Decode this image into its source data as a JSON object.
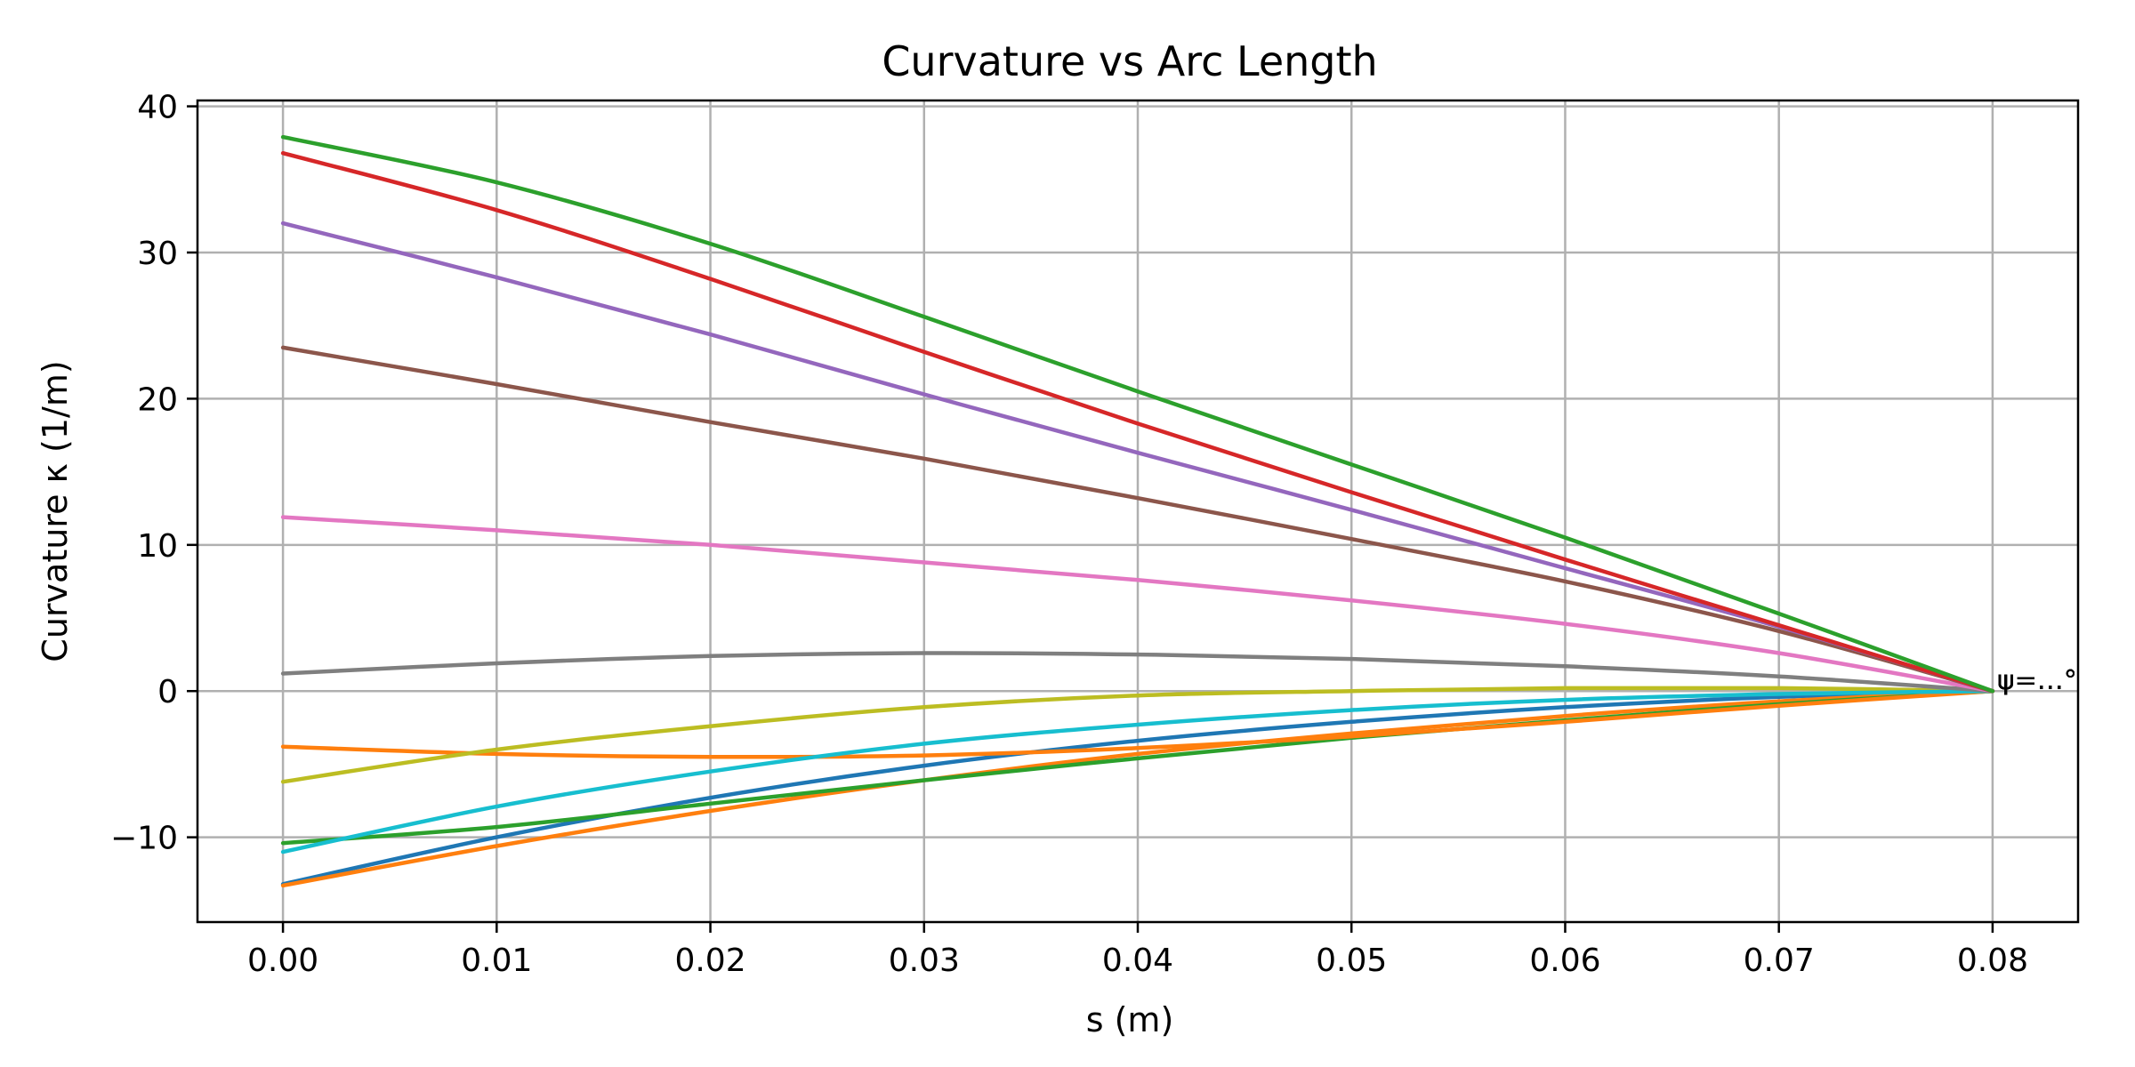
{
  "chart_data": {
    "type": "line",
    "title": "Curvature vs Arc Length",
    "xlabel": "s (m)",
    "ylabel": "Curvature κ (1/m)",
    "xlim": [
      -0.004,
      0.084
    ],
    "ylim": [
      -15.8,
      40.4
    ],
    "xticks": [
      0.0,
      0.01,
      0.02,
      0.03,
      0.04,
      0.05,
      0.06,
      0.07,
      0.08
    ],
    "xtick_labels": [
      "0.00",
      "0.01",
      "0.02",
      "0.03",
      "0.04",
      "0.05",
      "0.06",
      "0.07",
      "0.08"
    ],
    "yticks": [
      -10,
      0,
      10,
      20,
      30,
      40
    ],
    "ytick_labels": [
      "−10",
      "0",
      "10",
      "20",
      "30",
      "40"
    ],
    "grid": true,
    "x": [
      0.0,
      0.01,
      0.02,
      0.03,
      0.04,
      0.05,
      0.06,
      0.07,
      0.08
    ],
    "end_label": "ψ=…°",
    "series": [
      {
        "color": "#1f77b4",
        "values": [
          -13.2,
          -10.0,
          -7.3,
          -5.1,
          -3.4,
          -2.1,
          -1.1,
          -0.4,
          0.0
        ]
      },
      {
        "color": "#ff7f0e",
        "values": [
          -13.3,
          -10.6,
          -8.2,
          -6.1,
          -4.3,
          -2.9,
          -1.7,
          -0.7,
          0.0
        ]
      },
      {
        "color": "#2ca02c",
        "values": [
          -10.4,
          -9.3,
          -7.7,
          -6.1,
          -4.6,
          -3.2,
          -2.0,
          -0.9,
          0.0
        ]
      },
      {
        "color": "#ff7f0e",
        "values": [
          -3.8,
          -4.3,
          -4.5,
          -4.4,
          -3.9,
          -3.1,
          -2.1,
          -1.0,
          0.0
        ]
      },
      {
        "color": "#bcbd22",
        "values": [
          -6.2,
          -4.0,
          -2.4,
          -1.1,
          -0.3,
          0.0,
          0.2,
          0.2,
          0.0
        ]
      },
      {
        "color": "#17becf",
        "values": [
          -11.0,
          -7.9,
          -5.5,
          -3.6,
          -2.3,
          -1.3,
          -0.6,
          -0.2,
          0.0
        ]
      },
      {
        "color": "#7f7f7f",
        "values": [
          1.2,
          1.9,
          2.4,
          2.6,
          2.5,
          2.2,
          1.7,
          1.0,
          0.0
        ]
      },
      {
        "color": "#e377c2",
        "values": [
          11.9,
          11.0,
          10.0,
          8.8,
          7.6,
          6.2,
          4.6,
          2.6,
          0.0
        ]
      },
      {
        "color": "#8c564b",
        "values": [
          23.5,
          21.0,
          18.4,
          15.9,
          13.2,
          10.4,
          7.5,
          4.1,
          0.0
        ]
      },
      {
        "color": "#9467bd",
        "values": [
          32.0,
          28.3,
          24.4,
          20.3,
          16.3,
          12.4,
          8.4,
          4.4,
          0.0
        ]
      },
      {
        "color": "#d62728",
        "values": [
          36.8,
          32.9,
          28.2,
          23.2,
          18.3,
          13.6,
          9.0,
          4.5,
          0.0
        ]
      },
      {
        "color": "#2ca02c",
        "values": [
          37.9,
          34.8,
          30.6,
          25.6,
          20.5,
          15.5,
          10.5,
          5.3,
          0.0
        ]
      }
    ]
  }
}
